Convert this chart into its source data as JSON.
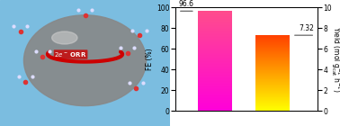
{
  "bar1_value_fe": 96.6,
  "bar2_value_yield": 7.32,
  "fe_ylim": [
    0,
    100
  ],
  "yield_ylim": [
    0,
    10
  ],
  "bar1_label": "96.6",
  "bar2_label": "7.32",
  "ylabel_left": "FE (%)",
  "ylabel_right": "Yield (mol $\\mathregular{g_{cat}^{-1}}$ $\\mathregular{h^{-1}}$)",
  "left_yticks": [
    0,
    20,
    40,
    60,
    80,
    100
  ],
  "right_yticks": [
    0,
    2,
    4,
    6,
    8,
    10
  ],
  "bg_color": "#ffffff",
  "annotation_fontsize": 5.5,
  "label_fontsize": 5.5,
  "tick_fontsize": 5.5,
  "bar1_x": 1,
  "bar2_x": 2,
  "bar_width": 0.6,
  "xlim": [
    0.3,
    2.8
  ]
}
